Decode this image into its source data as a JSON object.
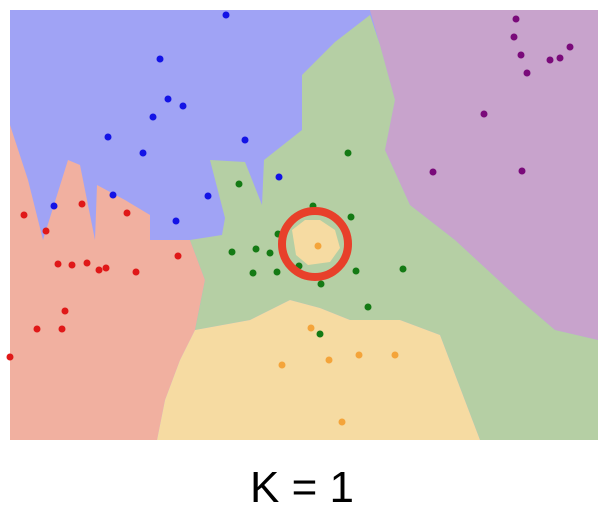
{
  "caption": "K = 1",
  "chart_data": {
    "type": "scatter",
    "title": "",
    "description_kind": "k-nearest-neighbor decision regions",
    "region_colors": {
      "blue": "#a0a3f5",
      "red": "#f1b0a0",
      "green": "#b5cfa4",
      "purple": "#c8a3cc",
      "orange": "#f6dba2"
    },
    "point_colors": {
      "blue": "#1313e6",
      "red": "#e01818",
      "green": "#147a14",
      "purple": "#7a0a7a",
      "orange": "#f4a43a"
    },
    "highlight_color": "#e8402a",
    "series": [
      {
        "class": "blue",
        "points": [
          [
            226,
            15
          ],
          [
            160,
            59
          ],
          [
            168,
            99
          ],
          [
            183,
            106
          ],
          [
            153,
            117
          ],
          [
            108,
            137
          ],
          [
            143,
            153
          ],
          [
            245,
            140
          ],
          [
            279,
            177
          ],
          [
            208,
            196
          ],
          [
            113,
            195
          ],
          [
            54,
            206
          ],
          [
            176,
            221
          ]
        ]
      },
      {
        "class": "red",
        "points": [
          [
            24,
            215
          ],
          [
            82,
            204
          ],
          [
            127,
            213
          ],
          [
            46,
            231
          ],
          [
            178,
            256
          ],
          [
            58,
            264
          ],
          [
            72,
            265
          ],
          [
            87,
            263
          ],
          [
            99,
            270
          ],
          [
            106,
            268
          ],
          [
            136,
            272
          ],
          [
            65,
            311
          ],
          [
            37,
            329
          ],
          [
            62,
            329
          ],
          [
            10,
            357
          ]
        ]
      },
      {
        "class": "green",
        "points": [
          [
            348,
            153
          ],
          [
            239,
            184
          ],
          [
            313,
            206
          ],
          [
            351,
            217
          ],
          [
            278,
            234
          ],
          [
            256,
            249
          ],
          [
            232,
            252
          ],
          [
            270,
            253
          ],
          [
            253,
            273
          ],
          [
            277,
            272
          ],
          [
            299,
            266
          ],
          [
            356,
            271
          ],
          [
            321,
            284
          ],
          [
            403,
            269
          ],
          [
            368,
            307
          ],
          [
            320,
            334
          ]
        ]
      },
      {
        "class": "purple",
        "points": [
          [
            516,
            19
          ],
          [
            514,
            37
          ],
          [
            570,
            47
          ],
          [
            521,
            55
          ],
          [
            560,
            58
          ],
          [
            550,
            60
          ],
          [
            527,
            73
          ],
          [
            484,
            114
          ],
          [
            433,
            172
          ],
          [
            522,
            171
          ]
        ]
      },
      {
        "class": "orange",
        "points": [
          [
            318,
            246
          ],
          [
            311,
            328
          ],
          [
            329,
            360
          ],
          [
            359,
            355
          ],
          [
            395,
            355
          ],
          [
            282,
            365
          ],
          [
            342,
            422
          ]
        ]
      }
    ],
    "highlight": {
      "shape": "circle",
      "center": [
        315,
        244
      ]
    }
  }
}
